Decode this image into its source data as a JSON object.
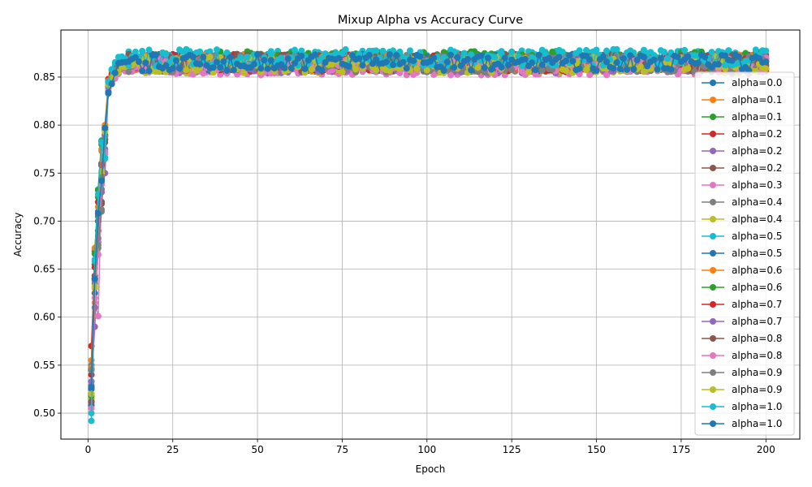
{
  "chart_data": {
    "type": "line",
    "title": "Mixup Alpha vs Accuracy Curve",
    "xlabel": "Epoch",
    "ylabel": "Accuracy",
    "xlim": [
      -8,
      210
    ],
    "ylim": [
      0.473,
      0.899
    ],
    "xticks": [
      0,
      25,
      50,
      75,
      100,
      125,
      150,
      175,
      200
    ],
    "yticks": [
      0.5,
      0.55,
      0.6,
      0.65,
      0.7,
      0.75,
      0.8,
      0.85
    ],
    "ytick_labels": [
      "0.50",
      "0.55",
      "0.60",
      "0.65",
      "0.70",
      "0.75",
      "0.80",
      "0.85"
    ],
    "grid": true,
    "legend_position": "right",
    "x_range": [
      1,
      200
    ],
    "series": [
      {
        "name": "alpha=0.0",
        "color": "#1f77b4",
        "start": 0.525,
        "e2": 0.64,
        "e3": 0.71,
        "e4": 0.745,
        "e5": 0.798,
        "e6": 0.835,
        "plateau": 0.865
      },
      {
        "name": "alpha=0.1",
        "color": "#ff7f0e",
        "start": 0.555,
        "e2": 0.67,
        "e3": 0.72,
        "e4": 0.775,
        "e5": 0.79,
        "e6": 0.845,
        "plateau": 0.864
      },
      {
        "name": "alpha=0.1",
        "color": "#2ca02c",
        "start": 0.545,
        "e2": 0.668,
        "e3": 0.725,
        "e4": 0.78,
        "e5": 0.795,
        "e6": 0.84,
        "plateau": 0.866
      },
      {
        "name": "alpha=0.2",
        "color": "#d62728",
        "start": 0.57,
        "e2": 0.655,
        "e3": 0.69,
        "e4": 0.76,
        "e5": 0.785,
        "e6": 0.848,
        "plateau": 0.865
      },
      {
        "name": "alpha=0.2",
        "color": "#9467bd",
        "start": 0.533,
        "e2": 0.59,
        "e3": 0.678,
        "e4": 0.73,
        "e5": 0.75,
        "e6": 0.84,
        "plateau": 0.864
      },
      {
        "name": "alpha=0.2",
        "color": "#8c564b",
        "start": 0.52,
        "e2": 0.64,
        "e3": 0.7,
        "e4": 0.72,
        "e5": 0.785,
        "e6": 0.842,
        "plateau": 0.865
      },
      {
        "name": "alpha=0.3",
        "color": "#e377c2",
        "start": 0.51,
        "e2": 0.615,
        "e3": 0.601,
        "e4": 0.74,
        "e5": 0.77,
        "e6": 0.838,
        "plateau": 0.861
      },
      {
        "name": "alpha=0.4",
        "color": "#7f7f7f",
        "start": 0.55,
        "e2": 0.635,
        "e3": 0.672,
        "e4": 0.71,
        "e5": 0.79,
        "e6": 0.84,
        "plateau": 0.864
      },
      {
        "name": "alpha=0.4",
        "color": "#bcbd22",
        "start": 0.515,
        "e2": 0.63,
        "e3": 0.705,
        "e4": 0.75,
        "e5": 0.795,
        "e6": 0.842,
        "plateau": 0.863
      },
      {
        "name": "alpha=0.5",
        "color": "#17becf",
        "start": 0.5,
        "e2": 0.658,
        "e3": 0.733,
        "e4": 0.784,
        "e5": 0.765,
        "e6": 0.845,
        "plateau": 0.869
      },
      {
        "name": "alpha=0.5",
        "color": "#1f77b4",
        "start": 0.508,
        "e2": 0.625,
        "e3": 0.705,
        "e4": 0.743,
        "e5": 0.795,
        "e6": 0.833,
        "plateau": 0.865
      },
      {
        "name": "alpha=0.6",
        "color": "#ff7f0e",
        "start": 0.547,
        "e2": 0.672,
        "e3": 0.715,
        "e4": 0.773,
        "e5": 0.8,
        "e6": 0.846,
        "plateau": 0.865
      },
      {
        "name": "alpha=0.6",
        "color": "#2ca02c",
        "start": 0.518,
        "e2": 0.666,
        "e3": 0.732,
        "e4": 0.783,
        "e5": 0.797,
        "e6": 0.841,
        "plateau": 0.868
      },
      {
        "name": "alpha=0.7",
        "color": "#d62728",
        "start": 0.54,
        "e2": 0.652,
        "e3": 0.72,
        "e4": 0.758,
        "e5": 0.789,
        "e6": 0.845,
        "plateau": 0.864
      },
      {
        "name": "alpha=0.7",
        "color": "#9467bd",
        "start": 0.529,
        "e2": 0.61,
        "e3": 0.682,
        "e4": 0.733,
        "e5": 0.775,
        "e6": 0.839,
        "plateau": 0.863
      },
      {
        "name": "alpha=0.8",
        "color": "#8c564b",
        "start": 0.512,
        "e2": 0.643,
        "e3": 0.7,
        "e4": 0.718,
        "e5": 0.782,
        "e6": 0.842,
        "plateau": 0.865
      },
      {
        "name": "alpha=0.8",
        "color": "#e377c2",
        "start": 0.505,
        "e2": 0.62,
        "e3": 0.665,
        "e4": 0.738,
        "e5": 0.772,
        "e6": 0.838,
        "plateau": 0.861
      },
      {
        "name": "alpha=0.9",
        "color": "#7f7f7f",
        "start": 0.545,
        "e2": 0.638,
        "e3": 0.675,
        "e4": 0.712,
        "e5": 0.788,
        "e6": 0.84,
        "plateau": 0.864
      },
      {
        "name": "alpha=0.9",
        "color": "#bcbd22",
        "start": 0.52,
        "e2": 0.632,
        "e3": 0.708,
        "e4": 0.752,
        "e5": 0.793,
        "e6": 0.842,
        "plateau": 0.863
      },
      {
        "name": "alpha=1.0",
        "color": "#17becf",
        "start": 0.492,
        "e2": 0.66,
        "e3": 0.728,
        "e4": 0.782,
        "e5": 0.766,
        "e6": 0.845,
        "plateau": 0.87
      },
      {
        "name": "alpha=1.0",
        "color": "#1f77b4",
        "start": 0.527,
        "e2": 0.64,
        "e3": 0.708,
        "e4": 0.742,
        "e5": 0.797,
        "e6": 0.834,
        "plateau": 0.865
      }
    ]
  }
}
